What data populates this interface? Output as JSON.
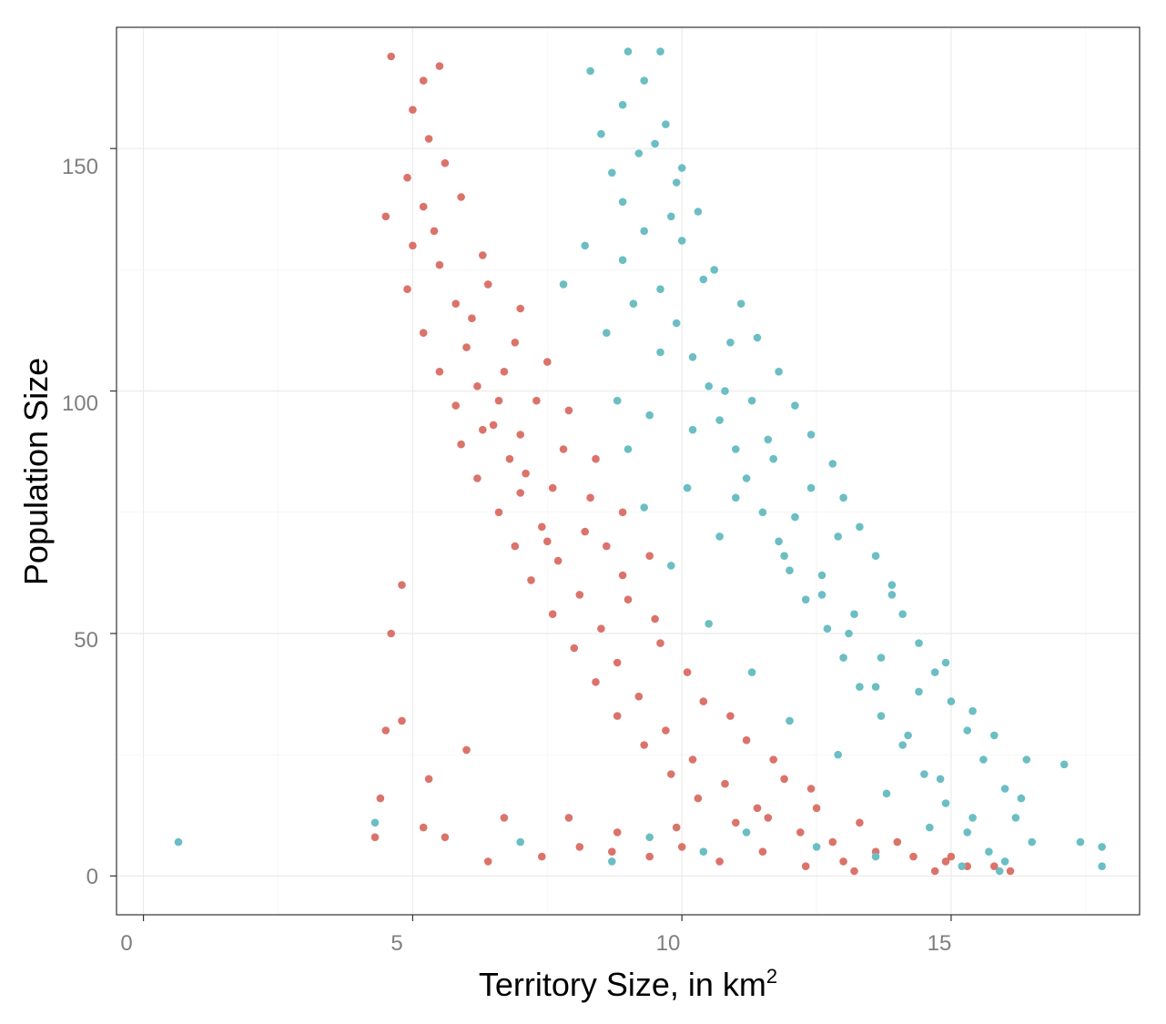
{
  "chart_data": {
    "type": "scatter",
    "title": "",
    "xlabel": "Territory Size, in km",
    "xlabel_sup": "2",
    "ylabel": "Population Size",
    "xlim": [
      -0.5,
      18.5
    ],
    "ylim": [
      -8,
      175
    ],
    "xticks": [
      0,
      5,
      10,
      15
    ],
    "yticks": [
      0,
      50,
      100,
      150
    ],
    "x_tick_labels": [
      "0",
      "5",
      "10",
      "15"
    ],
    "y_tick_labels": [
      "0",
      "50",
      "100",
      "150"
    ],
    "grid": true,
    "legend": "none",
    "series": [
      {
        "color": "#db736b",
        "points": [
          [
            4.6,
            169
          ],
          [
            5.5,
            167
          ],
          [
            5.2,
            164
          ],
          [
            5.0,
            158
          ],
          [
            5.3,
            152
          ],
          [
            4.9,
            144
          ],
          [
            5.2,
            138
          ],
          [
            4.5,
            136
          ],
          [
            5.0,
            130
          ],
          [
            5.5,
            126
          ],
          [
            4.9,
            121
          ],
          [
            5.8,
            118
          ],
          [
            5.2,
            112
          ],
          [
            6.0,
            109
          ],
          [
            5.5,
            104
          ],
          [
            6.2,
            101
          ],
          [
            5.8,
            97
          ],
          [
            6.5,
            93
          ],
          [
            5.9,
            89
          ],
          [
            6.8,
            86
          ],
          [
            6.2,
            82
          ],
          [
            7.0,
            79
          ],
          [
            6.6,
            75
          ],
          [
            7.4,
            72
          ],
          [
            6.9,
            68
          ],
          [
            7.7,
            65
          ],
          [
            7.2,
            61
          ],
          [
            8.1,
            58
          ],
          [
            7.6,
            54
          ],
          [
            8.5,
            51
          ],
          [
            8.0,
            47
          ],
          [
            8.8,
            44
          ],
          [
            8.4,
            40
          ],
          [
            9.2,
            37
          ],
          [
            8.8,
            33
          ],
          [
            9.7,
            30
          ],
          [
            9.3,
            27
          ],
          [
            10.2,
            24
          ],
          [
            9.8,
            21
          ],
          [
            10.8,
            19
          ],
          [
            10.3,
            16
          ],
          [
            11.4,
            14
          ],
          [
            11.0,
            11
          ],
          [
            12.2,
            9
          ],
          [
            12.8,
            7
          ],
          [
            13.6,
            5
          ],
          [
            14.3,
            4
          ],
          [
            14.9,
            3
          ],
          [
            15.3,
            2
          ],
          [
            15.8,
            2
          ],
          [
            16.1,
            1
          ],
          [
            5.9,
            140
          ],
          [
            5.6,
            147
          ],
          [
            6.4,
            122
          ],
          [
            6.9,
            110
          ],
          [
            7.3,
            98
          ],
          [
            7.8,
            88
          ],
          [
            8.3,
            78
          ],
          [
            8.6,
            68
          ],
          [
            9.0,
            57
          ],
          [
            9.6,
            48
          ],
          [
            10.4,
            36
          ],
          [
            11.2,
            28
          ],
          [
            11.9,
            20
          ],
          [
            12.5,
            14
          ],
          [
            7.1,
            83
          ],
          [
            7.5,
            69
          ],
          [
            6.3,
            92
          ],
          [
            6.7,
            104
          ],
          [
            4.8,
            60
          ],
          [
            4.6,
            50
          ],
          [
            4.8,
            32
          ],
          [
            4.5,
            30
          ],
          [
            4.4,
            16
          ],
          [
            5.3,
            20
          ],
          [
            5.6,
            8
          ],
          [
            6.0,
            26
          ],
          [
            6.7,
            12
          ],
          [
            7.4,
            4
          ],
          [
            8.1,
            6
          ],
          [
            8.8,
            9
          ],
          [
            9.4,
            4
          ],
          [
            10.0,
            6
          ],
          [
            10.7,
            3
          ],
          [
            11.5,
            5
          ],
          [
            12.3,
            2
          ],
          [
            13.2,
            1
          ],
          [
            4.3,
            8
          ],
          [
            5.2,
            10
          ],
          [
            6.4,
            3
          ],
          [
            7.9,
            12
          ],
          [
            8.7,
            5
          ],
          [
            9.9,
            10
          ],
          [
            11.6,
            12
          ],
          [
            13.0,
            3
          ],
          [
            14.7,
            1
          ],
          [
            6.1,
            115
          ],
          [
            6.6,
            98
          ],
          [
            7.0,
            91
          ],
          [
            7.6,
            80
          ],
          [
            8.2,
            71
          ],
          [
            8.9,
            62
          ],
          [
            9.5,
            53
          ],
          [
            10.1,
            42
          ],
          [
            10.9,
            33
          ],
          [
            11.7,
            24
          ],
          [
            12.4,
            18
          ],
          [
            13.3,
            11
          ],
          [
            14.0,
            7
          ],
          [
            15.0,
            4
          ],
          [
            5.4,
            133
          ],
          [
            6.3,
            128
          ],
          [
            7.0,
            117
          ],
          [
            7.5,
            106
          ],
          [
            7.9,
            96
          ],
          [
            8.4,
            86
          ],
          [
            8.9,
            75
          ],
          [
            9.4,
            66
          ]
        ]
      },
      {
        "color": "#6bbec3",
        "points": [
          [
            9.0,
            170
          ],
          [
            9.6,
            170
          ],
          [
            8.3,
            166
          ],
          [
            9.3,
            164
          ],
          [
            8.9,
            159
          ],
          [
            9.7,
            155
          ],
          [
            8.5,
            153
          ],
          [
            9.2,
            149
          ],
          [
            8.7,
            145
          ],
          [
            9.9,
            143
          ],
          [
            8.9,
            139
          ],
          [
            10.3,
            137
          ],
          [
            9.3,
            133
          ],
          [
            10.0,
            131
          ],
          [
            8.9,
            127
          ],
          [
            10.6,
            125
          ],
          [
            9.6,
            121
          ],
          [
            11.1,
            118
          ],
          [
            9.9,
            114
          ],
          [
            11.4,
            111
          ],
          [
            10.2,
            107
          ],
          [
            11.8,
            104
          ],
          [
            10.5,
            101
          ],
          [
            12.1,
            97
          ],
          [
            10.7,
            94
          ],
          [
            12.4,
            91
          ],
          [
            11.0,
            88
          ],
          [
            12.8,
            85
          ],
          [
            11.2,
            82
          ],
          [
            13.0,
            78
          ],
          [
            11.5,
            75
          ],
          [
            13.3,
            72
          ],
          [
            11.8,
            69
          ],
          [
            13.6,
            66
          ],
          [
            12.0,
            63
          ],
          [
            13.9,
            60
          ],
          [
            12.3,
            57
          ],
          [
            14.1,
            54
          ],
          [
            12.7,
            51
          ],
          [
            14.4,
            48
          ],
          [
            13.0,
            45
          ],
          [
            14.7,
            42
          ],
          [
            13.3,
            39
          ],
          [
            15.0,
            36
          ],
          [
            13.7,
            33
          ],
          [
            15.3,
            30
          ],
          [
            14.1,
            27
          ],
          [
            15.6,
            24
          ],
          [
            14.5,
            21
          ],
          [
            16.0,
            18
          ],
          [
            14.9,
            15
          ],
          [
            16.2,
            12
          ],
          [
            15.3,
            9
          ],
          [
            16.5,
            7
          ],
          [
            15.7,
            5
          ],
          [
            16.0,
            3
          ],
          [
            15.2,
            2
          ],
          [
            9.5,
            151
          ],
          [
            10.0,
            146
          ],
          [
            9.8,
            136
          ],
          [
            10.4,
            123
          ],
          [
            10.9,
            110
          ],
          [
            11.3,
            98
          ],
          [
            11.7,
            86
          ],
          [
            12.1,
            74
          ],
          [
            12.6,
            62
          ],
          [
            13.1,
            50
          ],
          [
            13.6,
            39
          ],
          [
            14.2,
            29
          ],
          [
            14.8,
            20
          ],
          [
            15.4,
            12
          ],
          [
            8.2,
            130
          ],
          [
            7.8,
            122
          ],
          [
            8.6,
            112
          ],
          [
            8.8,
            98
          ],
          [
            9.0,
            88
          ],
          [
            9.3,
            76
          ],
          [
            9.8,
            64
          ],
          [
            10.5,
            52
          ],
          [
            11.3,
            42
          ],
          [
            12.0,
            32
          ],
          [
            12.9,
            25
          ],
          [
            13.8,
            17
          ],
          [
            14.6,
            10
          ],
          [
            4.3,
            11
          ],
          [
            0.65,
            7
          ],
          [
            17.1,
            23
          ],
          [
            17.4,
            7
          ],
          [
            17.8,
            6
          ],
          [
            17.8,
            2
          ],
          [
            16.4,
            24
          ],
          [
            15.4,
            34
          ],
          [
            15.8,
            29
          ],
          [
            14.9,
            44
          ],
          [
            16.3,
            16
          ],
          [
            13.2,
            54
          ],
          [
            13.9,
            58
          ],
          [
            12.6,
            58
          ],
          [
            13.7,
            45
          ],
          [
            14.4,
            38
          ],
          [
            11.0,
            78
          ],
          [
            10.2,
            92
          ],
          [
            9.6,
            108
          ],
          [
            10.8,
            100
          ],
          [
            11.6,
            90
          ],
          [
            12.4,
            80
          ],
          [
            12.9,
            70
          ],
          [
            11.9,
            66
          ],
          [
            10.7,
            70
          ],
          [
            10.1,
            80
          ],
          [
            9.4,
            95
          ],
          [
            9.1,
            118
          ],
          [
            7.0,
            7
          ],
          [
            8.7,
            3
          ],
          [
            9.4,
            8
          ],
          [
            10.4,
            5
          ],
          [
            11.2,
            9
          ],
          [
            12.5,
            6
          ],
          [
            13.6,
            4
          ],
          [
            15.9,
            1
          ]
        ]
      }
    ]
  }
}
